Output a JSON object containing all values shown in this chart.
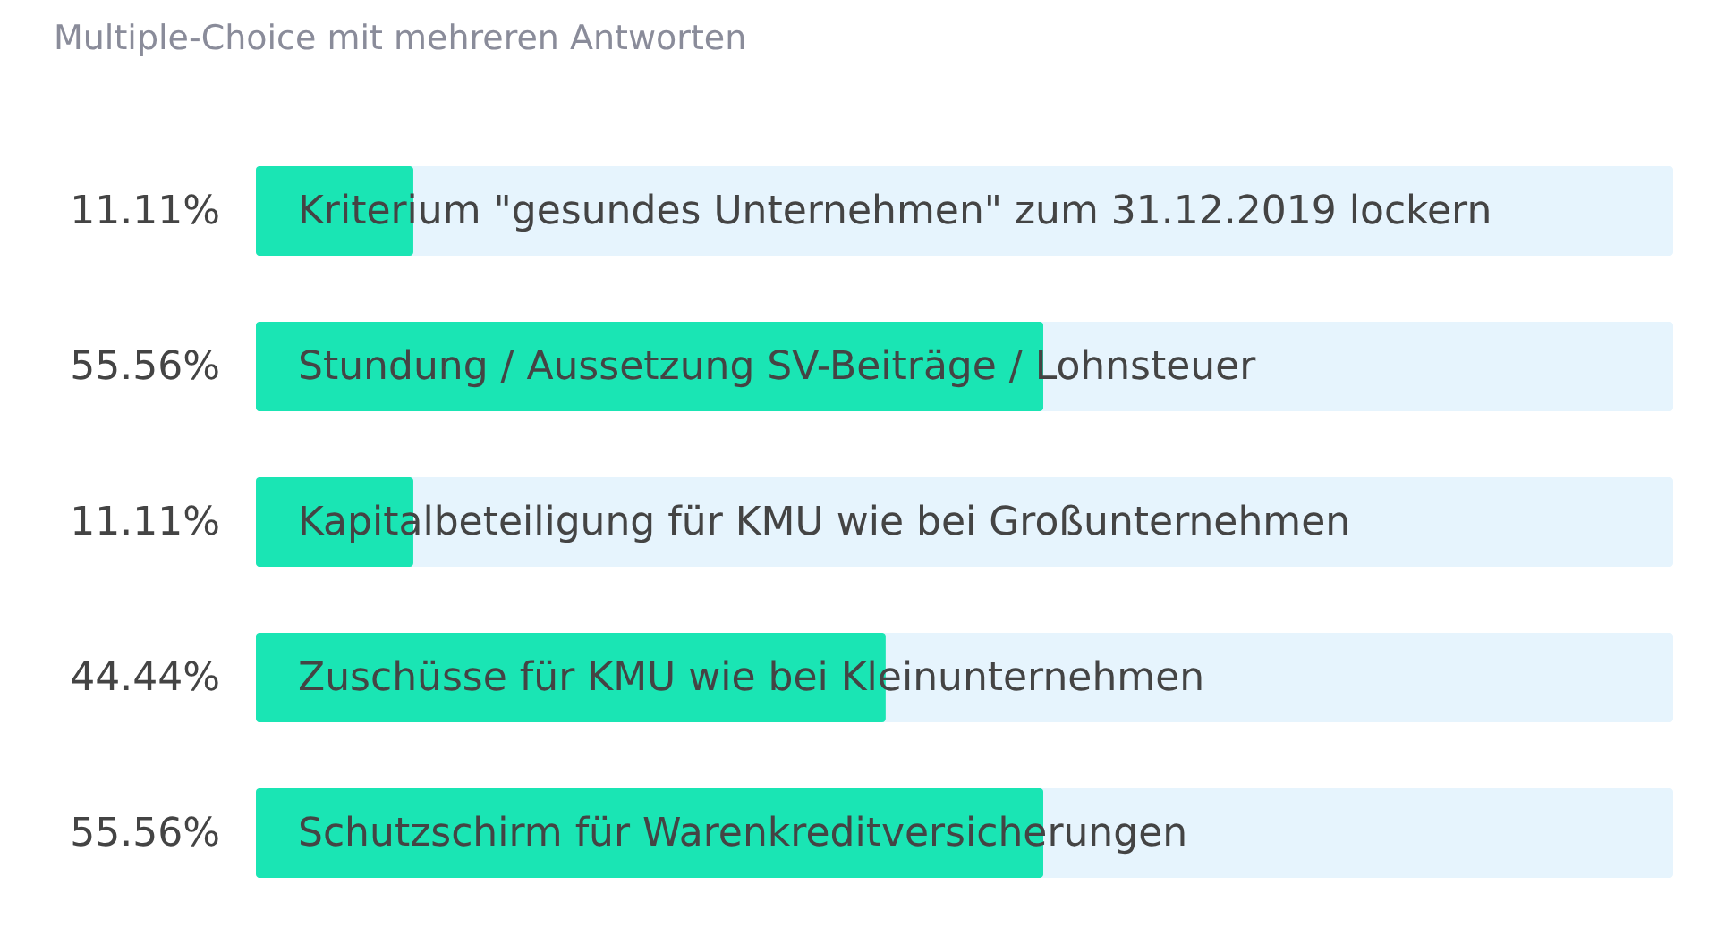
{
  "chart_data": {
    "type": "bar",
    "orientation": "horizontal",
    "title": "Multiple-Choice mit mehreren Antworten",
    "categories": [
      "Kriterium \"gesundes Unternehmen\" zum 31.12.2019 lockern",
      "Stundung / Aussetzung SV-Beiträge / Lohnsteuer",
      "Kapitalbeteiligung für KMU wie bei Großunternehmen",
      "Zuschüsse für KMU wie bei Kleinunternehmen",
      "Schutzschirm für Warenkreditversicherungen"
    ],
    "values": [
      11.11,
      55.56,
      11.11,
      44.44,
      55.56
    ],
    "value_labels": [
      "11.11%",
      "55.56%",
      "11.11%",
      "44.44%",
      "55.56%"
    ],
    "color": "#1ae5b4",
    "xlim": [
      0,
      100
    ],
    "tick_labels": "y"
  }
}
